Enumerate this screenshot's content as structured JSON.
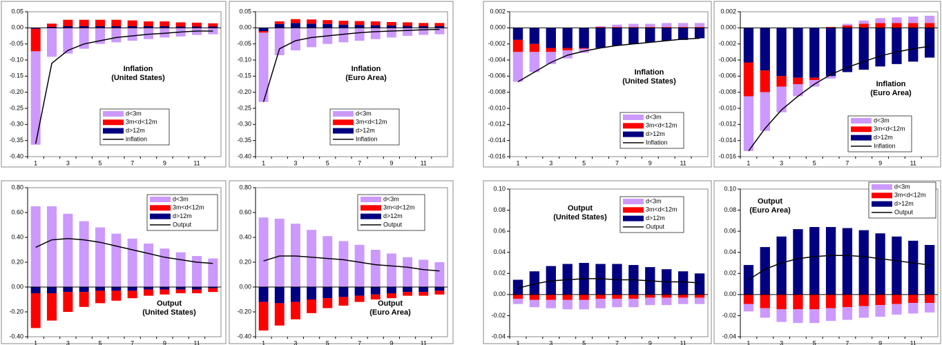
{
  "chart_data": [
    {
      "type": "bar",
      "stacked": true,
      "annotation": [
        "Inflation",
        "(United States)"
      ],
      "categories": [
        1,
        null,
        3,
        null,
        5,
        null,
        7,
        null,
        9,
        null,
        11,
        null
      ],
      "ylim": [
        -0.4,
        0.05
      ],
      "yticks": [
        {
          "value": 0.05,
          "label": "0.05"
        },
        {
          "value": 0,
          "label": "0.00"
        },
        {
          "value": -0.05,
          "label": "-0.05"
        },
        {
          "value": -0.1,
          "label": "-0.10"
        },
        {
          "value": -0.15,
          "label": "-0.15"
        },
        {
          "value": -0.2,
          "label": "-0.20"
        },
        {
          "value": -0.25,
          "label": "-0.25"
        },
        {
          "value": -0.3,
          "label": "-0.30"
        },
        {
          "value": -0.35,
          "label": "-0.35"
        },
        {
          "value": -0.4,
          "label": "-0.40"
        }
      ],
      "series": [
        {
          "name": "d<3m",
          "color": "#cc99ff",
          "values": [
            -0.29,
            -0.09,
            -0.08,
            -0.065,
            -0.05,
            -0.045,
            -0.04,
            -0.035,
            -0.03,
            -0.027,
            -0.022,
            -0.02
          ]
        },
        {
          "name": "3m<d<12m",
          "color": "#ff0000",
          "values": [
            -0.07,
            0.01,
            0.02,
            0.02,
            0.02,
            0.02,
            0.018,
            0.015,
            0.015,
            0.013,
            0.012,
            0.01
          ]
        },
        {
          "name": "d>12m",
          "color": "#000080",
          "values": [
            -0.003,
            0.003,
            0.005,
            0.005,
            0.005,
            0.005,
            0.005,
            0.005,
            0.005,
            0.004,
            0.004,
            0.004
          ]
        },
        {
          "name": "inflation",
          "type": "line",
          "color": "#000000",
          "values": [
            -0.36,
            -0.11,
            -0.07,
            -0.05,
            -0.04,
            -0.03,
            -0.025,
            -0.02,
            -0.017,
            -0.013,
            -0.01,
            -0.01
          ]
        }
      ]
    },
    {
      "type": "bar",
      "stacked": true,
      "annotation": [
        "Inflation",
        "(Euro Area)"
      ],
      "categories": [
        1,
        null,
        3,
        null,
        5,
        null,
        7,
        null,
        9,
        null,
        11,
        null
      ],
      "ylim": [
        -0.4,
        0.05
      ],
      "yticks": [
        {
          "value": 0.05,
          "label": "0.05"
        },
        {
          "value": 0,
          "label": "0.00"
        },
        {
          "value": -0.05,
          "label": "-0.05"
        },
        {
          "value": -0.1,
          "label": "-0.10"
        },
        {
          "value": -0.15,
          "label": "-0.15"
        },
        {
          "value": -0.2,
          "label": "-0.20"
        },
        {
          "value": -0.25,
          "label": "-0.25"
        },
        {
          "value": -0.3,
          "label": "-0.30"
        },
        {
          "value": -0.35,
          "label": "-0.35"
        },
        {
          "value": -0.4,
          "label": "-0.40"
        }
      ],
      "series": [
        {
          "name": "d<3m",
          "color": "#cc99ff",
          "values": [
            -0.215,
            -0.085,
            -0.07,
            -0.06,
            -0.05,
            -0.045,
            -0.04,
            -0.035,
            -0.03,
            -0.025,
            -0.022,
            -0.02
          ]
        },
        {
          "name": "3m<d<12m",
          "color": "#ff0000",
          "values": [
            -0.005,
            0.008,
            0.012,
            0.013,
            0.012,
            0.012,
            0.012,
            0.012,
            0.011,
            0.011,
            0.01,
            0.01
          ]
        },
        {
          "name": "d>12m",
          "color": "#000080",
          "values": [
            -0.01,
            0.012,
            0.015,
            0.013,
            0.012,
            0.01,
            0.009,
            0.008,
            0.007,
            0.006,
            0.005,
            0.005
          ]
        },
        {
          "name": "Inflation",
          "type": "line",
          "color": "#000000",
          "values": [
            -0.23,
            -0.065,
            -0.04,
            -0.03,
            -0.025,
            -0.02,
            -0.015,
            -0.012,
            -0.01,
            -0.008,
            -0.006,
            -0.005
          ]
        }
      ]
    },
    {
      "type": "bar",
      "stacked": true,
      "annotation": [
        "Inflation",
        "(United States)"
      ],
      "categories": [
        1,
        null,
        3,
        null,
        5,
        null,
        7,
        null,
        9,
        null,
        11,
        null
      ],
      "ylim": [
        -0.016,
        0.002
      ],
      "yticks": [
        {
          "value": 0.002,
          "label": "0.002"
        },
        {
          "value": 0,
          "label": "0.000"
        },
        {
          "value": -0.002,
          "label": "-0.002"
        },
        {
          "value": -0.004,
          "label": "-0.004"
        },
        {
          "value": -0.006,
          "label": "-0.006"
        },
        {
          "value": -0.008,
          "label": "-0.008"
        },
        {
          "value": -0.01,
          "label": "-0.010"
        },
        {
          "value": -0.012,
          "label": "-0.012"
        },
        {
          "value": -0.014,
          "label": "-0.014"
        },
        {
          "value": -0.016,
          "label": "-0.016"
        }
      ],
      "series": [
        {
          "name": "d<3m",
          "color": "#cc99ff",
          "values": [
            -0.0037,
            -0.0025,
            -0.0015,
            -0.001,
            -0.0005,
            0.0001,
            0.0003,
            0.0004,
            0.0004,
            0.0005,
            0.0005,
            0.0005
          ]
        },
        {
          "name": "3m<d<12m",
          "color": "#ff0000",
          "values": [
            -0.0015,
            -0.001,
            -0.0005,
            -0.0003,
            -0.0001,
            0.0001,
            0.0001,
            0.0001,
            0.0001,
            0.0001,
            0.0001,
            0.0001
          ]
        },
        {
          "name": "d>12m",
          "color": "#000080",
          "values": [
            -0.0015,
            -0.002,
            -0.0025,
            -0.0025,
            -0.0025,
            -0.0025,
            -0.0022,
            -0.002,
            -0.0018,
            -0.0016,
            -0.0015,
            -0.0013
          ]
        },
        {
          "name": "Inflation",
          "type": "line",
          "color": "#000000",
          "values": [
            -0.0067,
            -0.0055,
            -0.0043,
            -0.0034,
            -0.0029,
            -0.0025,
            -0.0022,
            -0.002,
            -0.0018,
            -0.0016,
            -0.0014,
            -0.0013
          ]
        }
      ]
    },
    {
      "type": "bar",
      "stacked": true,
      "annotation": [
        "Inflation",
        "(Euro Area)"
      ],
      "categories": [
        1,
        null,
        3,
        null,
        5,
        null,
        7,
        null,
        9,
        null,
        11,
        null
      ],
      "ylim": [
        -0.016,
        0.002
      ],
      "yticks": [
        {
          "value": 0.002,
          "label": "0.002"
        },
        {
          "value": 0,
          "label": "0.000"
        },
        {
          "value": -0.002,
          "label": "-0.002"
        },
        {
          "value": -0.004,
          "label": "-0.004"
        },
        {
          "value": -0.006,
          "label": "-0.006"
        },
        {
          "value": -0.008,
          "label": "-0.008"
        },
        {
          "value": -0.01,
          "label": "-0.010"
        },
        {
          "value": -0.012,
          "label": "-0.012"
        },
        {
          "value": -0.014,
          "label": "-0.014"
        },
        {
          "value": -0.016,
          "label": "-0.016"
        }
      ],
      "series": [
        {
          "name": "d<3m",
          "color": "#cc99ff",
          "values": [
            -0.0068,
            -0.0048,
            -0.0032,
            -0.0015,
            -0.0008,
            -0.0003,
            0.0002,
            0.0004,
            0.0006,
            0.0007,
            0.0008,
            0.0009
          ]
        },
        {
          "name": "3m<d<12m",
          "color": "#ff0000",
          "values": [
            -0.0042,
            -0.0027,
            -0.0013,
            -0.0008,
            -0.0003,
            0.0001,
            0.0003,
            0.0005,
            0.0006,
            0.0006,
            0.0006,
            0.0006
          ]
        },
        {
          "name": "d>12m",
          "color": "#000080",
          "values": [
            -0.0043,
            -0.0053,
            -0.006,
            -0.0062,
            -0.0062,
            -0.006,
            -0.0055,
            -0.0052,
            -0.0048,
            -0.0045,
            -0.0042,
            -0.0037
          ]
        },
        {
          "name": "Inflation",
          "type": "line",
          "color": "#000000",
          "values": [
            -0.0153,
            -0.0125,
            -0.0102,
            -0.0085,
            -0.007,
            -0.0058,
            -0.0049,
            -0.0042,
            -0.0035,
            -0.003,
            -0.0026,
            -0.0023
          ]
        }
      ]
    },
    {
      "type": "bar",
      "stacked": true,
      "annotation": [
        "Output",
        "(United States)"
      ],
      "categories": [
        1,
        null,
        3,
        null,
        5,
        null,
        7,
        null,
        9,
        null,
        11,
        null
      ],
      "ylim": [
        -0.4,
        0.8
      ],
      "yticks": [
        {
          "value": 0.8,
          "label": "0.80"
        },
        {
          "value": 0.6,
          "label": "0.60"
        },
        {
          "value": 0.4,
          "label": "0.40"
        },
        {
          "value": 0.2,
          "label": "0.20"
        },
        {
          "value": 0,
          "label": "0.00"
        },
        {
          "value": -0.2,
          "label": "-0.20"
        },
        {
          "value": -0.4,
          "label": "-0.40"
        }
      ],
      "series": [
        {
          "name": "d<3m",
          "color": "#cc99ff",
          "values": [
            0.65,
            0.65,
            0.59,
            0.53,
            0.48,
            0.43,
            0.39,
            0.35,
            0.31,
            0.28,
            0.25,
            0.23
          ]
        },
        {
          "name": "3m<d<12m",
          "color": "#ff0000",
          "values": [
            -0.28,
            -0.22,
            -0.16,
            -0.12,
            -0.1,
            -0.08,
            -0.06,
            -0.05,
            -0.04,
            -0.03,
            -0.03,
            -0.03
          ]
        },
        {
          "name": "d>12m",
          "color": "#000080",
          "values": [
            -0.05,
            -0.05,
            -0.04,
            -0.04,
            -0.03,
            -0.03,
            -0.03,
            -0.02,
            -0.02,
            -0.02,
            -0.02,
            -0.01
          ]
        },
        {
          "name": "Output",
          "type": "line",
          "color": "#000000",
          "values": [
            0.32,
            0.38,
            0.39,
            0.38,
            0.36,
            0.33,
            0.3,
            0.27,
            0.24,
            0.22,
            0.2,
            0.19
          ]
        }
      ]
    },
    {
      "type": "bar",
      "stacked": true,
      "annotation": [
        "Output",
        "(Euro Area)"
      ],
      "categories": [
        1,
        null,
        3,
        null,
        5,
        null,
        7,
        null,
        9,
        null,
        11,
        null
      ],
      "ylim": [
        -0.4,
        0.8
      ],
      "yticks": [
        {
          "value": 0.8,
          "label": "0.80"
        },
        {
          "value": 0.6,
          "label": "0.60"
        },
        {
          "value": 0.4,
          "label": "0.40"
        },
        {
          "value": 0.2,
          "label": "0.20"
        },
        {
          "value": 0,
          "label": "0.00"
        },
        {
          "value": -0.2,
          "label": "-0.20"
        },
        {
          "value": -0.4,
          "label": "-0.40"
        }
      ],
      "series": [
        {
          "name": "d<3m",
          "color": "#cc99ff",
          "values": [
            0.56,
            0.55,
            0.51,
            0.46,
            0.41,
            0.37,
            0.34,
            0.3,
            0.27,
            0.24,
            0.22,
            0.2
          ]
        },
        {
          "name": "3m<d<12m",
          "color": "#ff0000",
          "values": [
            -0.23,
            -0.18,
            -0.14,
            -0.11,
            -0.08,
            -0.07,
            -0.05,
            -0.04,
            -0.04,
            -0.03,
            -0.03,
            -0.03
          ]
        },
        {
          "name": "d>12m",
          "color": "#000080",
          "values": [
            -0.12,
            -0.13,
            -0.12,
            -0.1,
            -0.09,
            -0.08,
            -0.07,
            -0.06,
            -0.05,
            -0.04,
            -0.04,
            -0.03
          ]
        },
        {
          "name": "Output",
          "type": "line",
          "color": "#000000",
          "values": [
            0.21,
            0.25,
            0.25,
            0.24,
            0.23,
            0.22,
            0.2,
            0.18,
            0.17,
            0.16,
            0.14,
            0.13
          ]
        }
      ]
    },
    {
      "type": "bar",
      "stacked": true,
      "annotation": [
        "Output",
        "(United States)"
      ],
      "categories": [
        1,
        null,
        3,
        null,
        5,
        null,
        7,
        null,
        9,
        null,
        11,
        null
      ],
      "ylim": [
        -0.04,
        0.1
      ],
      "yticks": [
        {
          "value": 0.1,
          "label": "0.10"
        },
        {
          "value": 0.08,
          "label": "0.08"
        },
        {
          "value": 0.06,
          "label": "0.06"
        },
        {
          "value": 0.04,
          "label": "0.04"
        },
        {
          "value": 0.02,
          "label": "0.02"
        },
        {
          "value": 0,
          "label": "0.00"
        },
        {
          "value": -0.02,
          "label": "-0.02"
        },
        {
          "value": -0.04,
          "label": "-0.04"
        }
      ],
      "series": [
        {
          "name": "d<3m",
          "color": "#cc99ff",
          "values": [
            -0.005,
            -0.007,
            -0.008,
            -0.009,
            -0.009,
            -0.009,
            -0.008,
            -0.008,
            -0.007,
            -0.007,
            -0.006,
            -0.006
          ]
        },
        {
          "name": "3m<d<12m",
          "color": "#ff0000",
          "values": [
            -0.004,
            -0.005,
            -0.005,
            -0.005,
            -0.005,
            -0.004,
            -0.004,
            -0.004,
            -0.003,
            -0.003,
            -0.003,
            -0.003
          ]
        },
        {
          "name": "d>12m",
          "color": "#000080",
          "values": [
            0.014,
            0.022,
            0.027,
            0.029,
            0.03,
            0.029,
            0.029,
            0.028,
            0.026,
            0.024,
            0.022,
            0.02
          ]
        },
        {
          "name": "Output",
          "type": "line",
          "color": "#000000",
          "values": [
            0.006,
            0.01,
            0.013,
            0.014,
            0.015,
            0.015,
            0.014,
            0.014,
            0.013,
            0.012,
            0.012,
            0.011
          ]
        }
      ]
    },
    {
      "type": "bar",
      "stacked": true,
      "annotation": [
        "Output",
        "(Euro Area)"
      ],
      "categories": [
        1,
        null,
        3,
        null,
        5,
        null,
        7,
        null,
        9,
        null,
        11,
        null
      ],
      "ylim": [
        -0.04,
        0.1
      ],
      "yticks": [
        {
          "value": 0.1,
          "label": "0.10"
        },
        {
          "value": 0.08,
          "label": "0.08"
        },
        {
          "value": 0.06,
          "label": "0.06"
        },
        {
          "value": 0.04,
          "label": "0.04"
        },
        {
          "value": 0.02,
          "label": "0.02"
        },
        {
          "value": 0,
          "label": "0.00"
        },
        {
          "value": -0.02,
          "label": "-0.02"
        },
        {
          "value": -0.04,
          "label": "-0.04"
        }
      ],
      "series": [
        {
          "name": "d<3m",
          "color": "#cc99ff",
          "values": [
            -0.007,
            -0.009,
            -0.012,
            -0.013,
            -0.013,
            -0.012,
            -0.012,
            -0.011,
            -0.011,
            -0.01,
            -0.01,
            -0.009
          ]
        },
        {
          "name": "3m<d<12m",
          "color": "#ff0000",
          "values": [
            -0.009,
            -0.013,
            -0.014,
            -0.014,
            -0.014,
            -0.013,
            -0.012,
            -0.011,
            -0.01,
            -0.009,
            -0.008,
            -0.008
          ]
        },
        {
          "name": "d>12m",
          "color": "#000080",
          "values": [
            0.028,
            0.045,
            0.055,
            0.062,
            0.064,
            0.064,
            0.063,
            0.061,
            0.058,
            0.055,
            0.051,
            0.047
          ]
        },
        {
          "name": "Output",
          "type": "line",
          "color": "#000000",
          "values": [
            0.014,
            0.024,
            0.03,
            0.034,
            0.036,
            0.037,
            0.037,
            0.036,
            0.034,
            0.032,
            0.03,
            0.028
          ]
        }
      ]
    }
  ]
}
